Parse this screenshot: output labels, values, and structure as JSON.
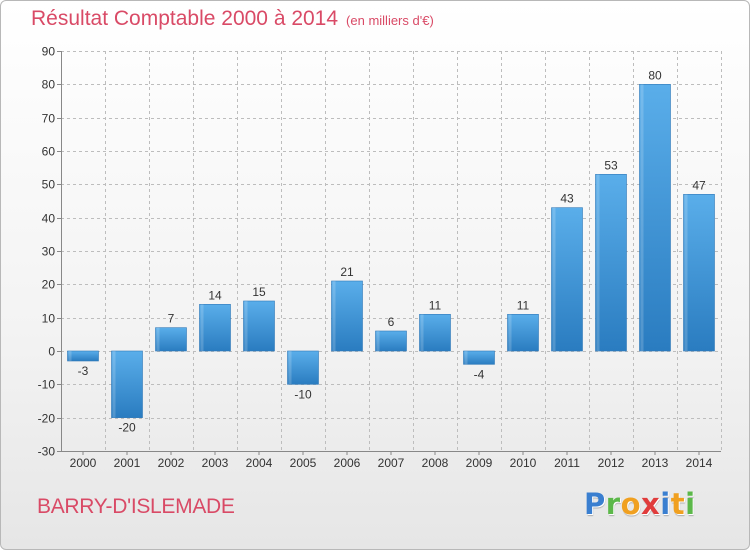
{
  "colors": {
    "accent": "#d94a66",
    "bar_light": "#5aaeea",
    "bar_dark": "#2a7cc0",
    "grid": "#bdbdbd",
    "axis_text": "#333333"
  },
  "header": {
    "title": "Résultat Comptable 2000 à 2014",
    "subtitle": "(en milliers d'€)"
  },
  "footer": {
    "commune": "BARRY-D'ISLEMADE",
    "logo_letters": [
      {
        "ch": "P",
        "color": "#3a7fd0"
      },
      {
        "ch": "r",
        "color": "#5cb84a"
      },
      {
        "ch": "o",
        "color": "#f0a020"
      },
      {
        "ch": "x",
        "color": "#e03c3c"
      },
      {
        "ch": "i",
        "color": "#3a7fd0"
      },
      {
        "ch": "t",
        "color": "#f0a020"
      },
      {
        "ch": "i",
        "color": "#5cb84a"
      }
    ]
  },
  "chart_data": {
    "type": "bar",
    "title": "Résultat Comptable 2000 à 2014",
    "subtitle": "(en milliers d'€)",
    "xlabel": "",
    "ylabel": "",
    "categories": [
      "2000",
      "2001",
      "2002",
      "2003",
      "2004",
      "2005",
      "2006",
      "2007",
      "2008",
      "2009",
      "2010",
      "2011",
      "2012",
      "2013",
      "2014"
    ],
    "values": [
      -3,
      -20,
      7,
      14,
      15,
      -10,
      21,
      6,
      11,
      -4,
      11,
      43,
      53,
      80,
      47
    ],
    "ylim": [
      -30,
      90
    ],
    "yticks": [
      -30,
      -20,
      -10,
      0,
      10,
      20,
      30,
      40,
      50,
      60,
      70,
      80,
      90
    ],
    "grid": true,
    "legend": "none"
  }
}
